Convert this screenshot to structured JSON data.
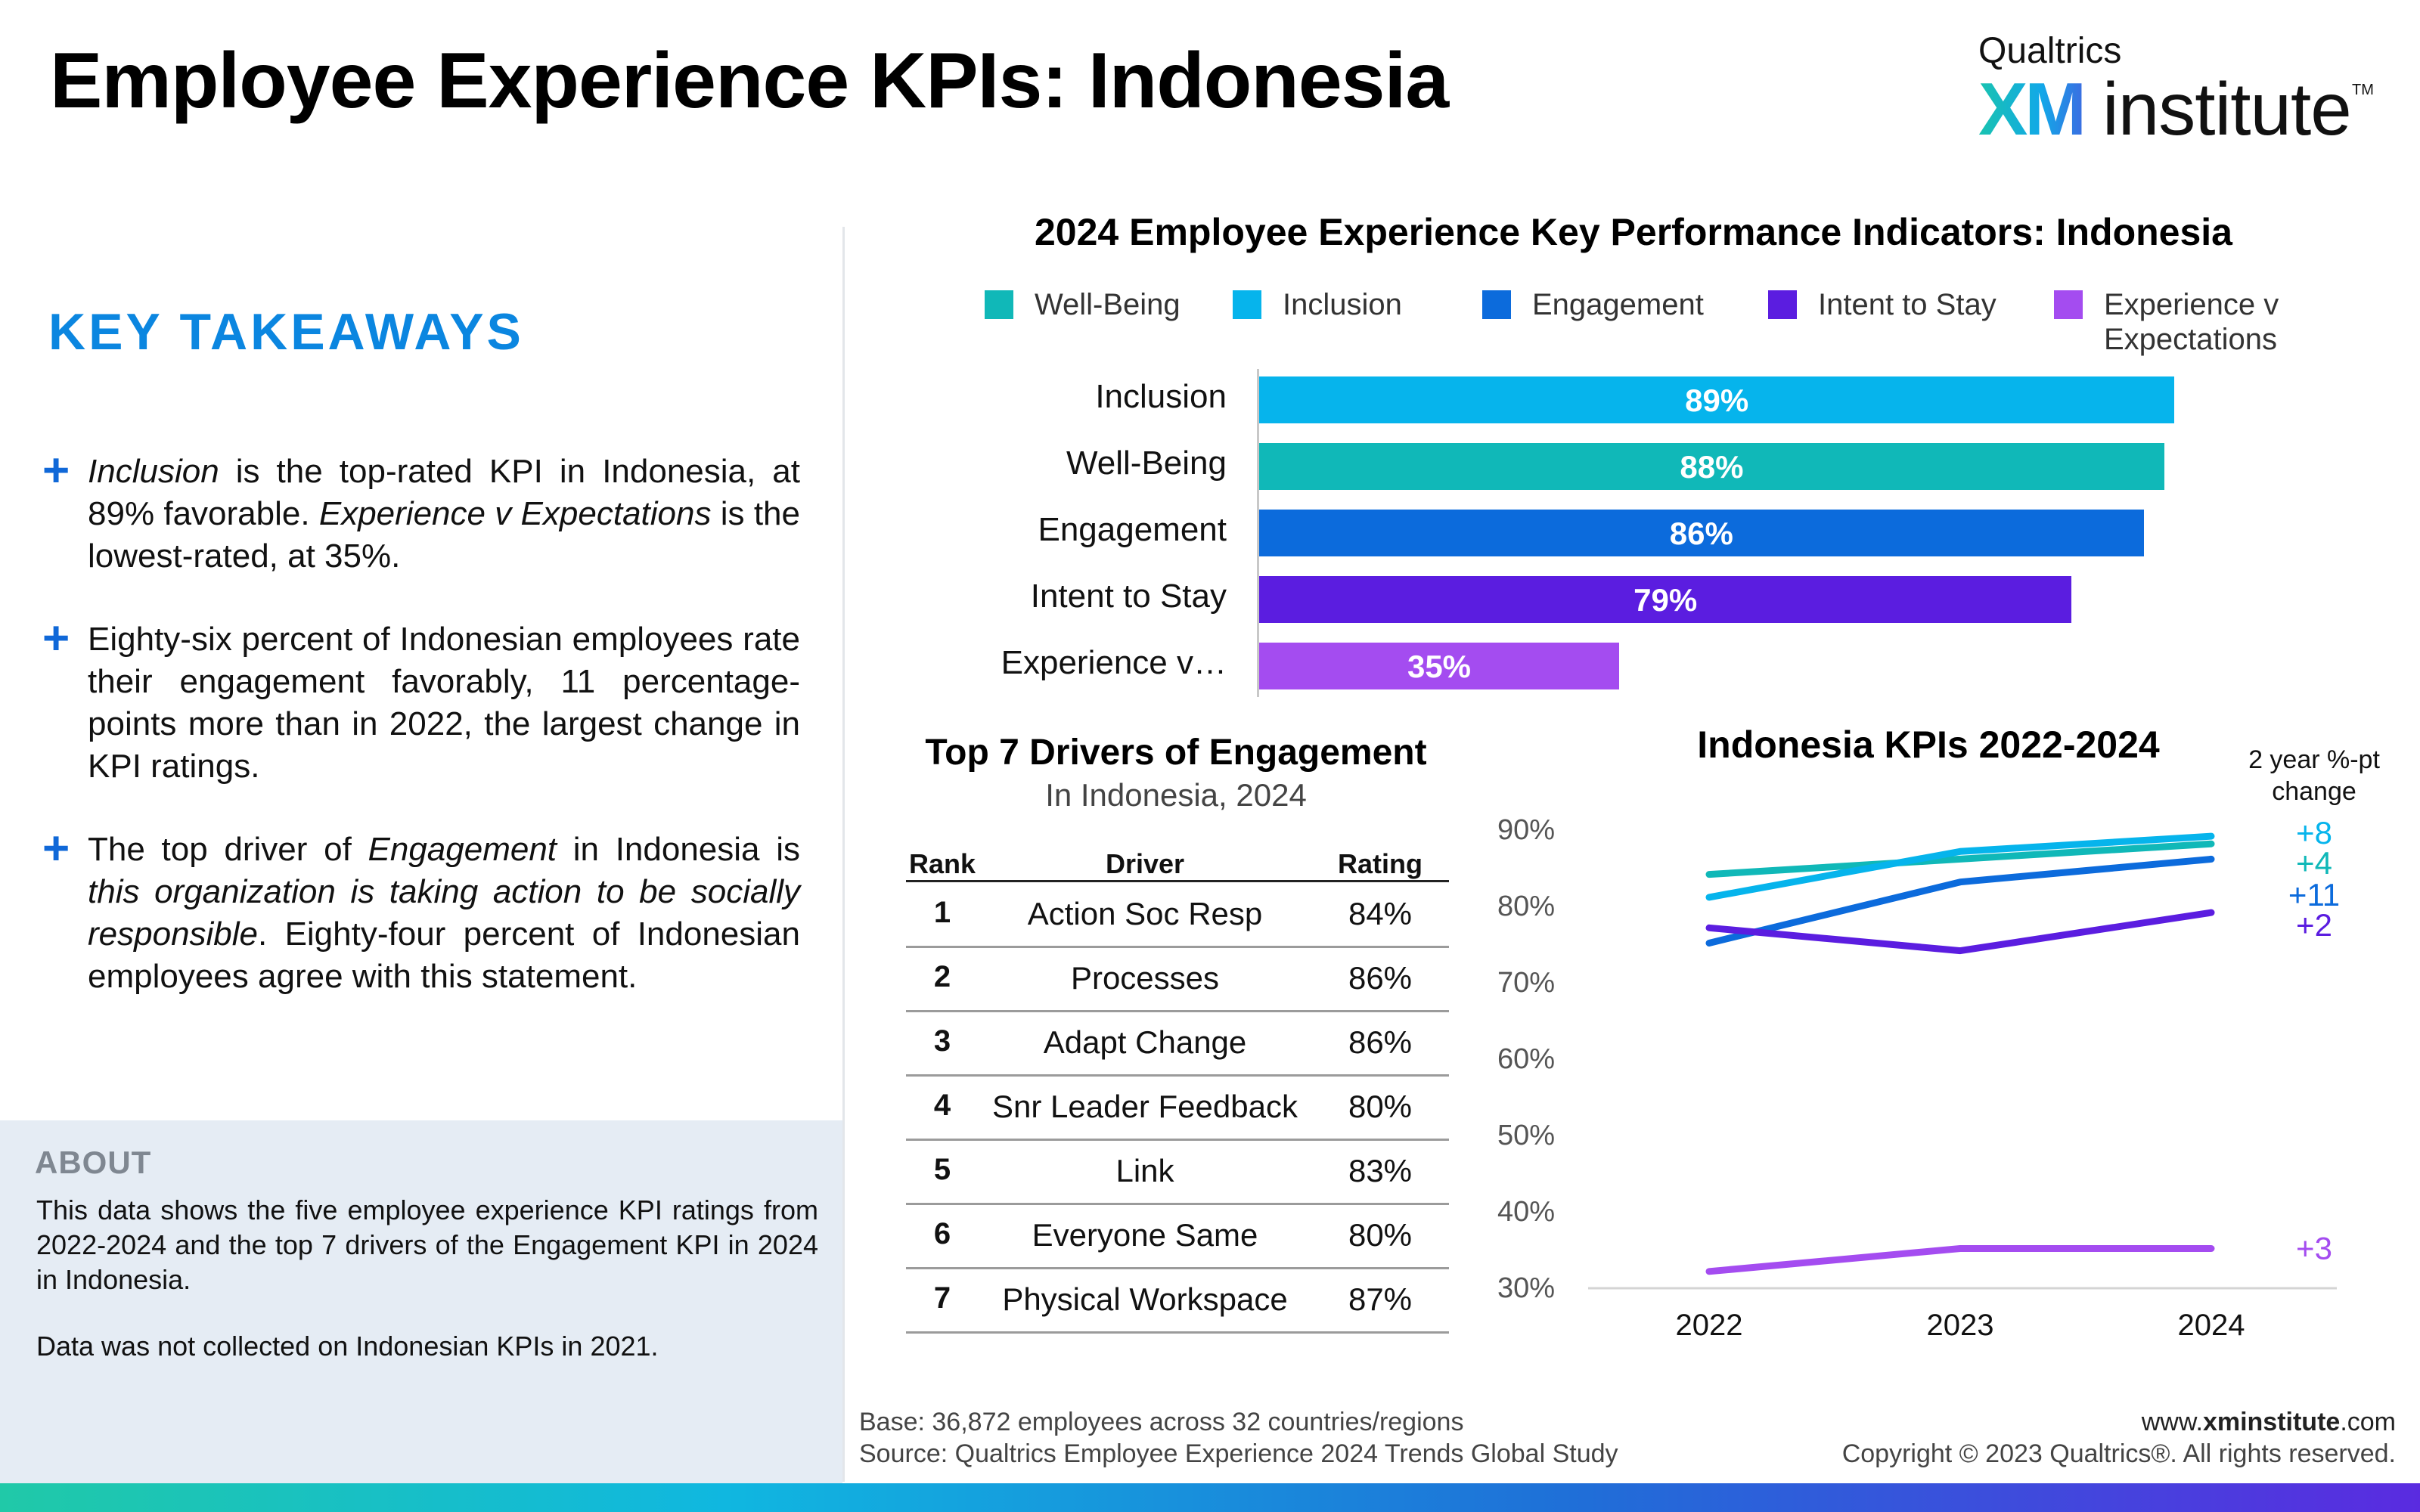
{
  "page": {
    "title": "Employee Experience KPIs: Indonesia",
    "logo": {
      "top": "Qualtrics",
      "xm": "XM",
      "institute": "institute",
      "tm": "TM"
    }
  },
  "takeaways": {
    "heading": "KEY TAKEAWAYS",
    "bullets": [
      {
        "a": "Inclusion",
        "b": " is the top-rated KPI in Indonesia, at 89% favorable. ",
        "c": "Experience v Expectations",
        "d": " is the lowest-rated, at 35%."
      },
      {
        "a": "",
        "b": "Eighty-six percent of Indonesian employees rate their engagement favorably, 11 percentage-points more than in 2022, the largest change in KPI ratings.",
        "c": "",
        "d": ""
      },
      {
        "a": "",
        "b": "The top driver of ",
        "c": "Engagement",
        "d": " in Indonesia is ",
        "e": "this organization is taking action to be socially responsible",
        "f": ". Eighty-four percent of Indonesian employees agree with this statement."
      }
    ],
    "plus": "+"
  },
  "about": {
    "title": "ABOUT",
    "text": "This data shows the five employee experience KPI ratings from 2022-2024 and the top 7 drivers of the Engagement KPI in 2024 in Indonesia.",
    "note": "Data was not collected on Indonesian KPIs in 2021."
  },
  "colors": {
    "wellbeing": "#10b8b8",
    "inclusion": "#06b4ec",
    "engagement": "#0c6bdc",
    "intent": "#5b1de0",
    "experience": "#a44cf0"
  },
  "chart_data": [
    {
      "type": "bar",
      "orientation": "horizontal",
      "title": "2024 Employee Experience Key Performance Indicators: Indonesia",
      "legend": [
        "Well-Being",
        "Inclusion",
        "Engagement",
        "Intent to Stay",
        "Experience v Expectations"
      ],
      "legend_placement": "top",
      "categories": [
        "Inclusion",
        "Well-Being",
        "Engagement",
        "Intent to Stay",
        "Experience v…"
      ],
      "values": [
        89,
        88,
        86,
        79,
        35
      ],
      "data_labels": [
        "89%",
        "88%",
        "86%",
        "79%",
        "35%"
      ],
      "xlim": [
        0,
        100
      ]
    },
    {
      "type": "table",
      "title": "Top 7 Drivers of Engagement",
      "subtitle": "In Indonesia, 2024",
      "columns": [
        "Rank",
        "Driver",
        "Rating"
      ],
      "rows": [
        [
          "1",
          "Action Soc Resp",
          "84%"
        ],
        [
          "2",
          "Processes",
          "86%"
        ],
        [
          "3",
          "Adapt Change",
          "86%"
        ],
        [
          "4",
          "Snr Leader Feedback",
          "80%"
        ],
        [
          "5",
          "Link",
          "83%"
        ],
        [
          "6",
          "Everyone Same",
          "80%"
        ],
        [
          "7",
          "Physical Workspace",
          "87%"
        ]
      ]
    },
    {
      "type": "line",
      "title": "Indonesia KPIs 2022-2024",
      "change_heading": "2 year %-pt change",
      "x": [
        "2022",
        "2023",
        "2024"
      ],
      "ylim": [
        30,
        90
      ],
      "yticks": [
        "90%",
        "80%",
        "70%",
        "60%",
        "50%",
        "40%",
        "30%"
      ],
      "series": [
        {
          "key": "wellbeing",
          "values": [
            84,
            86,
            88
          ],
          "change": "+4"
        },
        {
          "key": "inclusion",
          "values": [
            81,
            87,
            89
          ],
          "change": "+8"
        },
        {
          "key": "engagement",
          "values": [
            75,
            83,
            86
          ],
          "change": "+11"
        },
        {
          "key": "intent",
          "values": [
            77,
            74,
            79
          ],
          "change": "+2"
        },
        {
          "key": "experience",
          "values": [
            32,
            35,
            35
          ],
          "change": "+3"
        }
      ]
    }
  ],
  "footer": {
    "base": "Base: 36,872 employees across 32 countries/regions",
    "source": "Source: Qualtrics Employee Experience 2024 Trends Global Study",
    "site_prefix": "www.",
    "site_bold": "xminstitute",
    "site_suffix": ".com",
    "copyright": "Copyright © 2023 Qualtrics®. All rights reserved."
  }
}
